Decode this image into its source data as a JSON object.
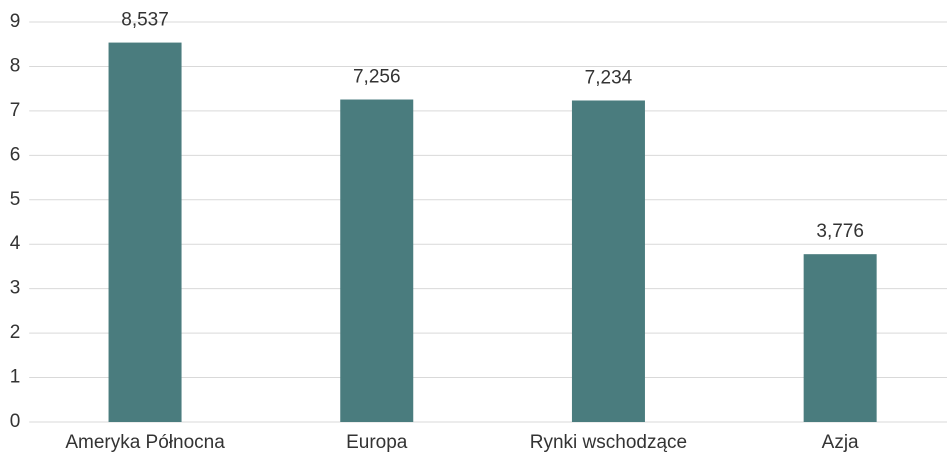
{
  "chart_data": {
    "type": "bar",
    "categories": [
      "Ameryka Północna",
      "Europa",
      "Rynki wschodzące",
      "Azja"
    ],
    "values": [
      8.537,
      7.256,
      7.234,
      3.776
    ],
    "value_labels": [
      "8,537",
      "7,256",
      "7,234",
      "3,776"
    ],
    "color": "#4a7c7e",
    "ylim": [
      0,
      9
    ],
    "yticks": [
      0,
      1,
      2,
      3,
      4,
      5,
      6,
      7,
      8,
      9
    ],
    "grid": true
  }
}
